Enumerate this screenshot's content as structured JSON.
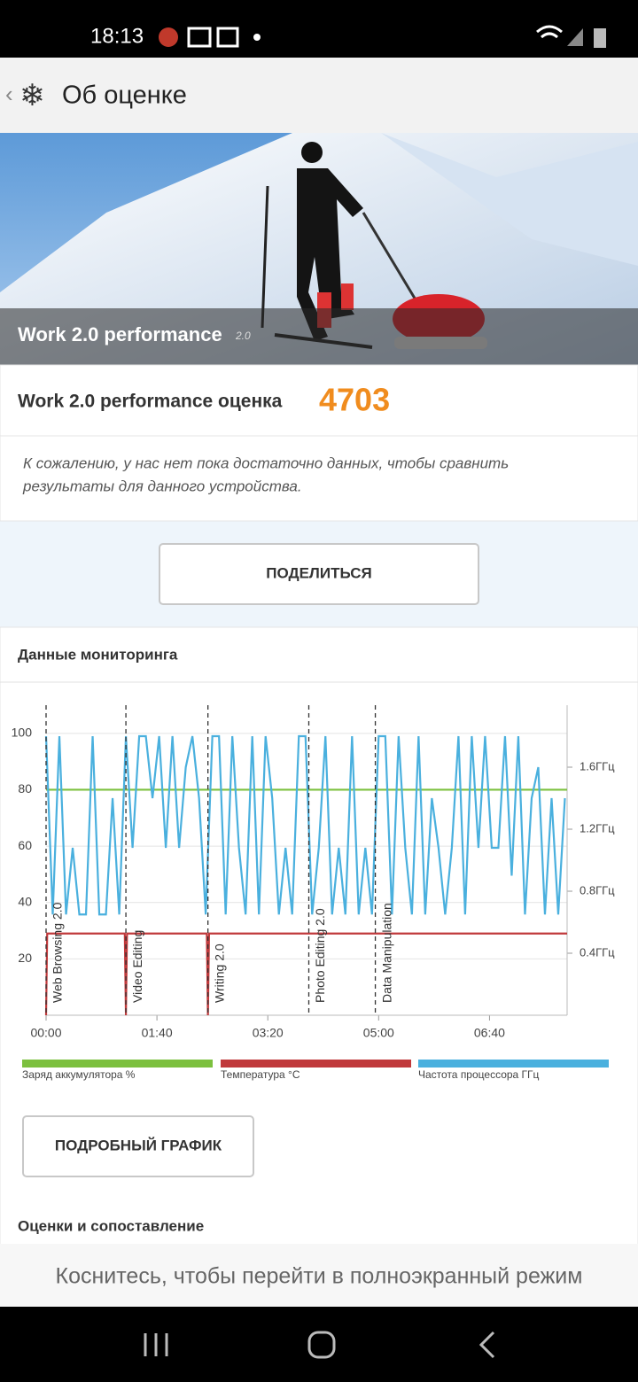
{
  "status_bar": {
    "time": "18:13"
  },
  "header": {
    "title": "Об оценке"
  },
  "banner": {
    "title": "Work 2.0 performance",
    "version": "2.0"
  },
  "score": {
    "label": "Work 2.0 performance оценка",
    "value": 4703
  },
  "note": {
    "lines": [
      "К сожалению, у нас нет пока достаточно данных, чтобы сравнить",
      "результаты для данного устройства."
    ]
  },
  "share_button": "ПОДЕЛИТЬСЯ",
  "monitoring": {
    "title": "Данные мониторинга",
    "chart_data": {
      "type": "line",
      "xlim": [
        0,
        470
      ],
      "xticks": [
        {
          "value": 0,
          "label": "00:00"
        },
        {
          "value": 100,
          "label": "01:40"
        },
        {
          "value": 200,
          "label": "03:20"
        },
        {
          "value": 300,
          "label": "05:00"
        },
        {
          "value": 400,
          "label": "06:40"
        }
      ],
      "ylim": [
        0,
        110
      ],
      "yticks": [
        20,
        40,
        60,
        80,
        100
      ],
      "y2lim": [
        0,
        2
      ],
      "y2ticks": [
        {
          "value": 0.4,
          "label": "0.4ГГц"
        },
        {
          "value": 0.8,
          "label": "0.8ГГц"
        },
        {
          "value": 1.2,
          "label": "1.2ГГц"
        },
        {
          "value": 1.6,
          "label": "1.6ГГц"
        }
      ],
      "grid": true,
      "annotations": [
        {
          "x": 0,
          "label": "Web Browsing 2.0"
        },
        {
          "x": 72,
          "label": "Video Editing"
        },
        {
          "x": 146,
          "label": "Writing 2.0"
        },
        {
          "x": 237,
          "label": "Photo Editing 2.0"
        },
        {
          "x": 297,
          "label": "Data Manipulation"
        }
      ],
      "series": [
        {
          "name": "Заряд аккумулятора %",
          "color": "#7cc03e",
          "x": [
            0,
            470
          ],
          "values": [
            80,
            80
          ]
        },
        {
          "name": "Температура °C",
          "color": "#c0393b",
          "x": [
            0,
            1,
            71,
            72,
            73,
            145,
            146,
            147,
            470
          ],
          "values": [
            0,
            29,
            29,
            0,
            29,
            29,
            0,
            29,
            29
          ]
        },
        {
          "name": "Частота процессора ГГц",
          "color": "#4ab0de",
          "axis": "y2",
          "x": [
            0,
            6,
            12,
            18,
            24,
            30,
            36,
            42,
            48,
            54,
            60,
            66,
            72,
            78,
            84,
            90,
            96,
            102,
            108,
            114,
            120,
            126,
            132,
            138,
            144,
            150,
            156,
            162,
            168,
            174,
            180,
            186,
            192,
            198,
            204,
            210,
            216,
            222,
            228,
            234,
            240,
            246,
            252,
            258,
            264,
            270,
            276,
            282,
            288,
            294,
            300,
            306,
            312,
            318,
            324,
            330,
            336,
            342,
            348,
            354,
            360,
            366,
            372,
            378,
            384,
            390,
            396,
            402,
            408,
            414,
            420,
            426,
            432,
            438,
            444,
            450,
            456,
            462,
            468
          ],
          "values": [
            1.8,
            0.65,
            1.8,
            0.65,
            1.08,
            0.65,
            0.65,
            1.8,
            0.65,
            0.65,
            1.4,
            0.65,
            1.8,
            1.08,
            1.8,
            1.8,
            1.4,
            1.8,
            1.08,
            1.8,
            1.08,
            1.6,
            1.8,
            1.4,
            0.65,
            1.8,
            1.8,
            0.65,
            1.8,
            1.08,
            0.65,
            1.8,
            0.65,
            1.8,
            1.4,
            0.65,
            1.08,
            0.65,
            1.8,
            1.8,
            0.65,
            1.08,
            1.8,
            0.65,
            1.08,
            0.65,
            1.8,
            0.65,
            1.08,
            0.65,
            1.8,
            1.8,
            0.65,
            1.8,
            1.08,
            0.65,
            1.8,
            0.65,
            1.4,
            1.08,
            0.65,
            1.08,
            1.8,
            0.65,
            1.8,
            1.08,
            1.8,
            1.08,
            1.08,
            1.8,
            0.9,
            1.8,
            0.65,
            1.4,
            1.6,
            0.65,
            1.4,
            0.65,
            1.4
          ]
        }
      ]
    }
  },
  "detail_button": "ПОДРОБНЫЙ ГРАФИК",
  "section_title": "Оценки и сопоставление",
  "toast": "Коснитесь, чтобы перейти в полноэкранный режим"
}
